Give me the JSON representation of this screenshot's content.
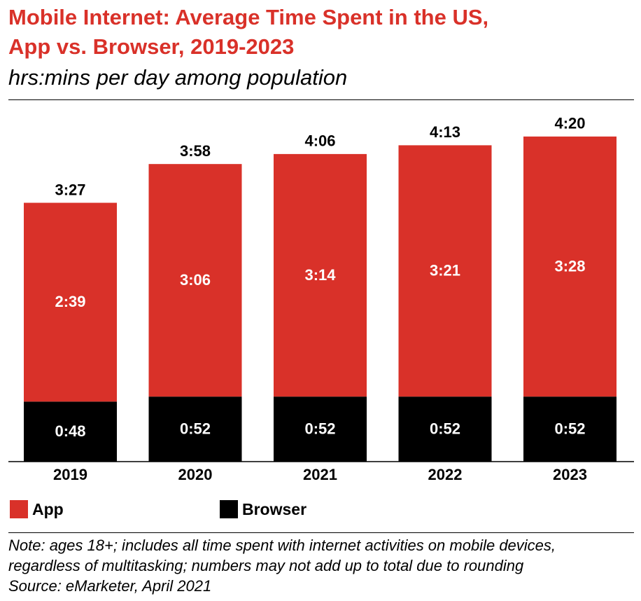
{
  "header": {
    "title_line1": "Mobile Internet: Average Time Spent in the US,",
    "title_line2": "App vs. Browser, 2019-2023",
    "subtitle": "hrs:mins per day among population"
  },
  "colors": {
    "app": "#d93129",
    "browser": "#000000",
    "title": "#d93129"
  },
  "chart_data": {
    "type": "bar",
    "stacked": true,
    "unit": "hrs:mins per day",
    "categories": [
      "2019",
      "2020",
      "2021",
      "2022",
      "2023"
    ],
    "series": [
      {
        "name": "Browser",
        "values": [
          48,
          52,
          52,
          52,
          52
        ],
        "labels": [
          "0:48",
          "0:52",
          "0:52",
          "0:52",
          "0:52"
        ]
      },
      {
        "name": "App",
        "values": [
          159,
          186,
          194,
          201,
          208
        ],
        "labels": [
          "2:39",
          "3:06",
          "3:14",
          "3:21",
          "3:28"
        ]
      }
    ],
    "totals": [
      207,
      238,
      246,
      253,
      260
    ],
    "total_labels": [
      "3:27",
      "3:58",
      "4:06",
      "4:13",
      "4:20"
    ],
    "grid": false,
    "legend_position": "bottom-left"
  },
  "legend": {
    "app_label": "App",
    "browser_label": "Browser"
  },
  "footer": {
    "note_line1": "Note: ages 18+; includes all time spent with internet activities on mobile devices,",
    "note_line2": "regardless of multitasking; numbers may not add up to total due to rounding",
    "source": "Source: eMarketer, April 2021"
  }
}
